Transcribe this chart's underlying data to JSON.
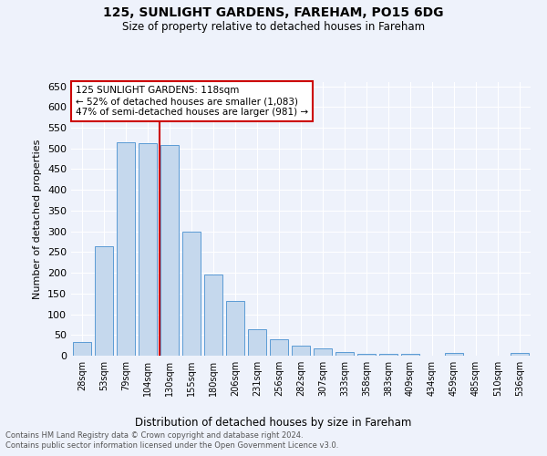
{
  "title1": "125, SUNLIGHT GARDENS, FAREHAM, PO15 6DG",
  "title2": "Size of property relative to detached houses in Fareham",
  "xlabel": "Distribution of detached houses by size in Fareham",
  "ylabel": "Number of detached properties",
  "categories": [
    "28sqm",
    "53sqm",
    "79sqm",
    "104sqm",
    "130sqm",
    "155sqm",
    "180sqm",
    "206sqm",
    "231sqm",
    "256sqm",
    "282sqm",
    "307sqm",
    "333sqm",
    "358sqm",
    "383sqm",
    "409sqm",
    "434sqm",
    "459sqm",
    "485sqm",
    "510sqm",
    "536sqm"
  ],
  "values": [
    33,
    263,
    515,
    512,
    508,
    300,
    196,
    132,
    64,
    39,
    24,
    17,
    9,
    5,
    4,
    4,
    0,
    6,
    0,
    0,
    6
  ],
  "bar_color": "#c5d8ed",
  "bar_edge_color": "#5b9bd5",
  "vline_color": "#cc0000",
  "annotation_text": "125 SUNLIGHT GARDENS: 118sqm\n← 52% of detached houses are smaller (1,083)\n47% of semi-detached houses are larger (981) →",
  "annotation_box_color": "#ffffff",
  "annotation_box_edge_color": "#cc0000",
  "ylim": [
    0,
    660
  ],
  "yticks": [
    0,
    50,
    100,
    150,
    200,
    250,
    300,
    350,
    400,
    450,
    500,
    550,
    600,
    650
  ],
  "background_color": "#eef2fb",
  "grid_color": "#ffffff",
  "footer1": "Contains HM Land Registry data © Crown copyright and database right 2024.",
  "footer2": "Contains public sector information licensed under the Open Government Licence v3.0."
}
